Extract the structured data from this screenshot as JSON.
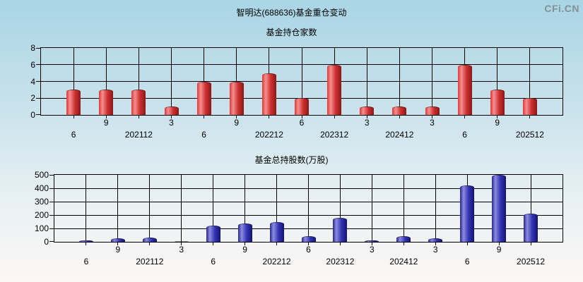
{
  "page": {
    "title": "智明达(688636)基金重仓变动",
    "watermark": "CFi.CN"
  },
  "chart_data": [
    {
      "type": "bar",
      "title": "基金持仓家数",
      "categories": [
        "6",
        "9",
        "202112",
        "3",
        "6",
        "9",
        "202212",
        "6",
        "202312",
        "3",
        "202412",
        "3",
        "6",
        "9",
        "202512"
      ],
      "values": [
        3,
        3,
        3,
        1,
        4,
        4,
        5,
        2,
        6,
        1,
        1,
        1,
        6,
        3,
        2
      ],
      "xlabel": "",
      "ylabel": "",
      "ylim": [
        0,
        8
      ],
      "yticks": [
        0,
        2,
        4,
        6,
        8
      ],
      "grid": true,
      "legend": false,
      "bar_style": "red-cylinder"
    },
    {
      "type": "bar",
      "title": "基金总持股数(万股)",
      "categories": [
        "6",
        "9",
        "202112",
        "3",
        "6",
        "9",
        "202212",
        "6",
        "202312",
        "3",
        "202412",
        "3",
        "6",
        "9",
        "202512"
      ],
      "values": [
        10,
        25,
        30,
        5,
        120,
        135,
        150,
        40,
        180,
        10,
        40,
        25,
        420,
        500,
        210
      ],
      "xlabel": "",
      "ylabel": "",
      "ylim": [
        0,
        500
      ],
      "yticks": [
        0,
        100,
        200,
        300,
        400,
        500
      ],
      "grid": true,
      "legend": false,
      "bar_style": "blue-cylinder"
    }
  ],
  "colors": {
    "background_gradient": [
      "#a9d5e5",
      "#c9e2ec",
      "#e9f1f3",
      "#fdf7f6"
    ],
    "grid": "#000000",
    "text": "#000000",
    "watermark": "#858f96",
    "bar_red_gradient": [
      "#e43535",
      "#f39090",
      "#cf3030",
      "#8a1818"
    ],
    "bar_blue_gradient": [
      "#26268f",
      "#8c8ce0",
      "#3434b4",
      "#131370"
    ]
  }
}
